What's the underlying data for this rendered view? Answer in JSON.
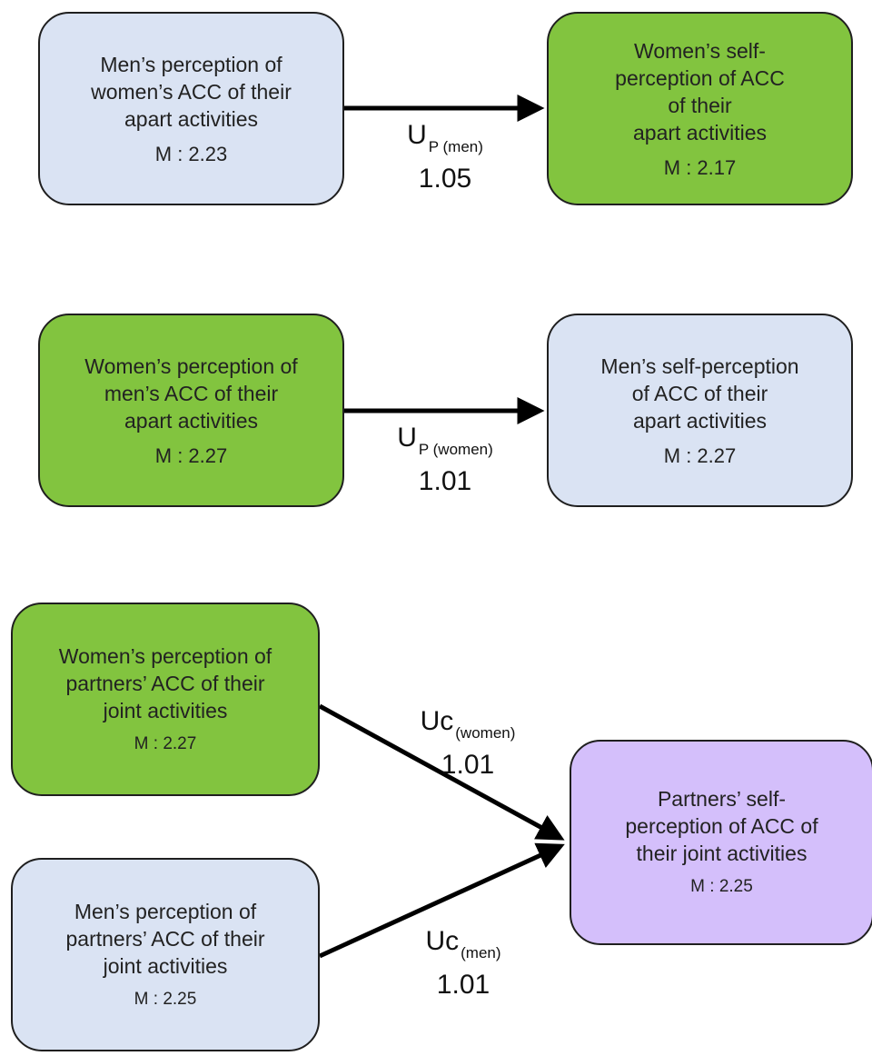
{
  "boxes": {
    "men_perc_women_apart": {
      "lines": [
        "Men’s perception of",
        "women’s ACC of their",
        "apart activities"
      ],
      "mean": "M : 2.23",
      "fill": "#dae3f3"
    },
    "women_self_apart": {
      "lines": [
        "Women’s self-",
        "perception of ACC",
        "of their",
        "apart activities"
      ],
      "mean": "M : 2.17",
      "fill": "#82c43f"
    },
    "women_perc_men_apart": {
      "lines": [
        "Women’s perception of",
        "men’s ACC of their",
        "apart activities"
      ],
      "mean": "M : 2.27",
      "fill": "#82c43f"
    },
    "men_self_apart": {
      "lines": [
        "Men’s self-perception",
        "of ACC of their",
        "apart activities"
      ],
      "mean": "M : 2.27",
      "fill": "#dae3f3"
    },
    "women_perc_joint": {
      "lines": [
        "Women’s perception of",
        "partners’ ACC of their",
        "joint activities"
      ],
      "mean": "M : 2.27",
      "fill": "#82c43f"
    },
    "men_perc_joint": {
      "lines": [
        "Men’s perception of",
        "partners’ ACC of their",
        "joint activities"
      ],
      "mean": "M : 2.25",
      "fill": "#dae3f3"
    },
    "partners_self_joint": {
      "lines": [
        "Partners’ self-",
        "perception of ACC of",
        "their joint activities"
      ],
      "mean": "M : 2.25",
      "fill": "#d4bffb"
    }
  },
  "edges": {
    "up_men": {
      "symbol": "U",
      "subscript": "P (men)",
      "value": "1.05"
    },
    "up_women": {
      "symbol": "U",
      "subscript": "P (women)",
      "value": "1.01"
    },
    "uc_women": {
      "symbol": "Uc",
      "subscript": "(women)",
      "value": "1.01"
    },
    "uc_men": {
      "symbol": "Uc",
      "subscript": "(men)",
      "value": "1.01"
    }
  },
  "colors": {
    "blue_box": "#dae3f3",
    "green_box": "#82c43f",
    "purple_box": "#d4bffb",
    "border": "#1f1f1f",
    "arrow": "#000000"
  }
}
